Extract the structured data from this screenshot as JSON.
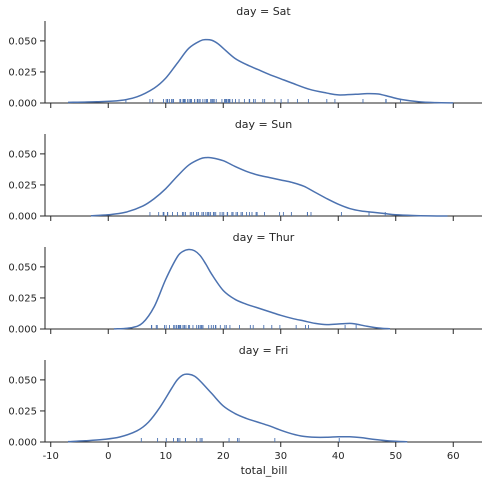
{
  "chart_data": [
    {
      "type": "line",
      "title": "day = Sat",
      "color": "#4c72b0",
      "x": [
        -7,
        -2,
        2,
        5,
        8,
        10,
        12,
        14,
        16,
        17,
        18,
        19,
        20,
        22,
        24,
        26,
        28,
        30,
        32,
        35,
        38,
        40,
        43,
        45,
        47,
        49,
        51,
        54,
        57,
        60
      ],
      "y": [
        0.0005,
        0.001,
        0.002,
        0.005,
        0.012,
        0.02,
        0.032,
        0.044,
        0.05,
        0.051,
        0.0505,
        0.048,
        0.044,
        0.036,
        0.031,
        0.027,
        0.023,
        0.0195,
        0.016,
        0.011,
        0.008,
        0.0065,
        0.007,
        0.0075,
        0.0072,
        0.005,
        0.0028,
        0.001,
        0.0003,
        0.0001
      ],
      "rug": [
        3.07,
        7.25,
        7.74,
        9.6,
        10.07,
        10.29,
        10.33,
        10.63,
        11.02,
        11.24,
        11.35,
        12.46,
        12.6,
        13,
        13.16,
        13.28,
        13.39,
        13.81,
        14.07,
        14.31,
        14.48,
        15.01,
        15.04,
        15.48,
        15.53,
        15.77,
        15.98,
        16.45,
        16.82,
        17.07,
        17.26,
        17.82,
        17.92,
        18.15,
        18.24,
        18.43,
        18.78,
        19.77,
        20.23,
        20.29,
        20.45,
        20.49,
        20.65,
        20.92,
        21.01,
        21.16,
        21.58,
        22.12,
        22.75,
        23.68,
        24.52,
        24.59,
        25.28,
        25.56,
        26.88,
        27.2,
        28.97,
        30.06,
        31.27,
        32.9,
        34.81,
        38.01,
        39.42,
        44.3,
        48.27,
        48.33,
        50.81
      ]
    },
    {
      "type": "line",
      "title": "day = Sun",
      "color": "#4c72b0",
      "x": [
        -3,
        0,
        3,
        6,
        8,
        10,
        12,
        14,
        16,
        17,
        18,
        20,
        22,
        24,
        26,
        28,
        30,
        32,
        34,
        36,
        38,
        40,
        42,
        44,
        46,
        48,
        50,
        53,
        56,
        59
      ],
      "y": [
        0.0002,
        0.001,
        0.003,
        0.008,
        0.014,
        0.022,
        0.032,
        0.041,
        0.046,
        0.047,
        0.0468,
        0.0445,
        0.04,
        0.036,
        0.033,
        0.031,
        0.029,
        0.027,
        0.024,
        0.019,
        0.014,
        0.0095,
        0.006,
        0.004,
        0.003,
        0.002,
        0.001,
        0.0004,
        0.0001,
        0.0
      ],
      "rug": [
        7.25,
        8.77,
        9.55,
        9.68,
        10.29,
        10.34,
        11.17,
        12.03,
        12.9,
        13.13,
        13.42,
        14.26,
        14.83,
        14.52,
        15.36,
        15.42,
        15.69,
        16.29,
        16.31,
        16.58,
        16.97,
        17.29,
        17.46,
        17.51,
        17.8,
        18.29,
        18.43,
        18.69,
        19.44,
        19.81,
        20.08,
        20.69,
        20.76,
        21.5,
        21.7,
        22.23,
        22.49,
        23.1,
        23.33,
        24.06,
        24.55,
        25,
        25.71,
        25.89,
        27.18,
        29.8,
        30.46,
        31.85,
        34.63,
        34.65,
        35.26,
        40.55,
        45.35,
        48.17
      ]
    },
    {
      "type": "line",
      "title": "day = Thur",
      "color": "#4c72b0",
      "x": [
        1,
        4,
        6,
        8,
        10,
        12,
        13,
        14,
        15,
        16,
        17,
        18,
        20,
        22,
        24,
        26,
        28,
        30,
        32,
        34,
        36,
        38,
        40,
        42,
        43,
        45,
        47,
        49
      ],
      "y": [
        0.0001,
        0.001,
        0.005,
        0.018,
        0.04,
        0.058,
        0.0625,
        0.064,
        0.063,
        0.059,
        0.052,
        0.044,
        0.031,
        0.024,
        0.02,
        0.017,
        0.014,
        0.011,
        0.0085,
        0.0065,
        0.0045,
        0.0035,
        0.004,
        0.0045,
        0.004,
        0.0022,
        0.0008,
        0.0002
      ],
      "rug": [
        7.51,
        7.56,
        8.35,
        8.52,
        9.78,
        10.07,
        10.65,
        11.38,
        11.59,
        11.87,
        12.16,
        12.26,
        12.43,
        12.48,
        12.6,
        13,
        13.03,
        13.27,
        13.51,
        13.94,
        14.15,
        14.73,
        15.38,
        15.69,
        15.98,
        16,
        16.21,
        16.43,
        16.47,
        17.47,
        17.92,
        18.28,
        18.64,
        18.71,
        19.49,
        20.27,
        20.53,
        21.16,
        22.82,
        24.71,
        25.21,
        27.05,
        28.44,
        29.85,
        32.68,
        34.3,
        34.83,
        41.19,
        43.11
      ]
    },
    {
      "type": "line",
      "title": "day = Fri",
      "color": "#4c72b0",
      "x": [
        -7,
        -4,
        -1,
        2,
        5,
        7,
        9,
        11,
        12,
        13,
        14,
        15,
        16,
        18,
        20,
        22,
        24,
        26,
        28,
        30,
        32,
        34,
        36,
        38,
        40,
        42,
        44,
        46,
        49,
        52
      ],
      "y": [
        0.0003,
        0.001,
        0.002,
        0.004,
        0.009,
        0.016,
        0.028,
        0.043,
        0.05,
        0.054,
        0.0545,
        0.053,
        0.049,
        0.039,
        0.029,
        0.023,
        0.019,
        0.016,
        0.013,
        0.0095,
        0.0065,
        0.0045,
        0.0038,
        0.0038,
        0.0042,
        0.0042,
        0.0035,
        0.0022,
        0.0008,
        0.0002
      ],
      "rug": [
        5.75,
        8.58,
        10.09,
        11.35,
        12.03,
        12.16,
        12.46,
        13.42,
        13.42,
        15.38,
        15.98,
        16.27,
        16.32,
        21.01,
        22.49,
        22.75,
        28.97,
        40.17
      ]
    }
  ],
  "axes": {
    "xlabel": "total_bill",
    "xlim": [
      -11,
      65
    ],
    "ylim": [
      0,
      0.066
    ],
    "xticks": [
      "-10",
      "0",
      "10",
      "20",
      "30",
      "40",
      "50",
      "60"
    ],
    "yticks": [
      "0.000",
      "0.025",
      "0.050"
    ],
    "grid": false
  }
}
